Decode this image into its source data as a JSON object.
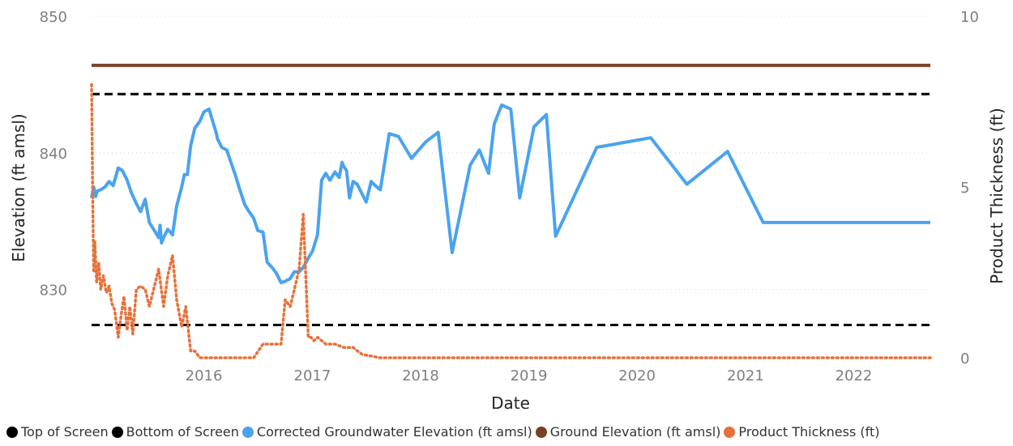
{
  "chart_data": {
    "type": "line",
    "title": "",
    "xlabel": "Date",
    "ylabel": "Elevation (ft amsl)",
    "y2label": "Product Thickness (ft)",
    "x_ticks": [
      "2016",
      "2017",
      "2018",
      "2019",
      "2020",
      "2021",
      "2022"
    ],
    "y_ticks": [
      830,
      840,
      850
    ],
    "y2_ticks": [
      0,
      5,
      10
    ],
    "ylim": [
      825,
      850
    ],
    "y2lim": [
      0,
      10
    ],
    "xlim": [
      "2015-01-01",
      "2022-09-30"
    ],
    "grid": "horizontal dotted",
    "legend_position": "bottom-left",
    "series": [
      {
        "name": "Top of Screen",
        "axis": "left",
        "color": "#000000",
        "style": "dashed",
        "x": [
          "2015-01-01",
          "2022-09-30"
        ],
        "values": [
          844.3,
          844.3
        ]
      },
      {
        "name": "Bottom of Screen",
        "axis": "left",
        "color": "#000000",
        "style": "dashed",
        "x": [
          "2015-01-01",
          "2022-09-30"
        ],
        "values": [
          827.4,
          827.4
        ]
      },
      {
        "name": "Corrected Groundwater Elevation (ft amsl)",
        "axis": "left",
        "color": "#4aa3f0",
        "style": "solid",
        "x": [
          "2015-01-01",
          "2015-01-08",
          "2015-01-15",
          "2015-01-20",
          "2015-02-01",
          "2015-02-15",
          "2015-03-01",
          "2015-03-15",
          "2015-04-01",
          "2015-04-15",
          "2015-05-01",
          "2015-05-15",
          "2015-06-01",
          "2015-06-15",
          "2015-07-01",
          "2015-07-15",
          "2015-08-01",
          "2015-08-15",
          "2015-08-20",
          "2015-08-25",
          "2015-09-01",
          "2015-09-15",
          "2015-10-01",
          "2015-10-15",
          "2015-11-01",
          "2015-11-10",
          "2015-11-20",
          "2015-12-01",
          "2015-12-15",
          "2016-01-01",
          "2016-01-15",
          "2016-02-01",
          "2016-02-15",
          "2016-02-25",
          "2016-03-01",
          "2016-03-15",
          "2016-04-01",
          "2016-04-15",
          "2016-05-01",
          "2016-05-15",
          "2016-06-01",
          "2016-06-15",
          "2016-07-01",
          "2016-07-15",
          "2016-08-01",
          "2016-08-15",
          "2016-09-01",
          "2016-09-15",
          "2016-10-01",
          "2016-10-15",
          "2016-11-01",
          "2016-11-15",
          "2016-12-01",
          "2016-12-15",
          "2017-01-01",
          "2017-01-15",
          "2017-02-01",
          "2017-02-15",
          "2017-03-01",
          "2017-03-15",
          "2017-04-01",
          "2017-04-15",
          "2017-04-25",
          "2017-05-01",
          "2017-05-10",
          "2017-05-20",
          "2017-06-01",
          "2017-06-15",
          "2017-07-01",
          "2017-07-15",
          "2017-08-01",
          "2017-08-15",
          "2017-09-01",
          "2017-10-01",
          "2017-11-01",
          "2017-12-15",
          "2018-02-01",
          "2018-03-15",
          "2018-05-01",
          "2018-07-01",
          "2018-08-01",
          "2018-09-01",
          "2018-09-20",
          "2018-10-15",
          "2018-11-15",
          "2018-12-15",
          "2019-02-01",
          "2019-03-15",
          "2019-04-15",
          "2019-09-01",
          "2020-03-01",
          "2020-07-01",
          "2020-11-15",
          "2021-03-15",
          "2021-07-15",
          "2021-12-01",
          "2022-03-01",
          "2022-09-30"
        ],
        "values": [
          836.7,
          837.5,
          836.8,
          837.2,
          837.3,
          837.5,
          837.9,
          837.6,
          838.9,
          838.7,
          838.0,
          837.1,
          836.3,
          835.7,
          836.6,
          834.9,
          834.3,
          833.8,
          834.7,
          833.4,
          833.8,
          834.4,
          834.0,
          836.1,
          837.5,
          838.4,
          838.4,
          840.5,
          841.8,
          842.3,
          843.0,
          843.2,
          842.2,
          841.5,
          841.0,
          840.4,
          840.2,
          839.3,
          838.3,
          837.3,
          836.2,
          835.7,
          835.2,
          834.3,
          834.2,
          832.0,
          831.6,
          831.2,
          830.5,
          830.6,
          830.8,
          831.3,
          831.3,
          831.6,
          832.3,
          832.8,
          834.0,
          838.0,
          838.5,
          838.0,
          838.6,
          838.2,
          839.3,
          839.0,
          838.7,
          836.7,
          837.9,
          837.7,
          837.0,
          836.4,
          837.9,
          837.6,
          837.3,
          841.4,
          841.2,
          839.6,
          840.8,
          841.5,
          832.7,
          839.1,
          840.2,
          838.5,
          842.1,
          843.5,
          843.2,
          836.7,
          841.9,
          842.8,
          833.9,
          840.4,
          841.1,
          837.7,
          840.1,
          834.9,
          834.9,
          834.9,
          834.9,
          834.9
        ]
      },
      {
        "name": "Ground Elevation (ft amsl)",
        "axis": "left",
        "color": "#7b3f23",
        "style": "solid",
        "x": [
          "2015-01-01",
          "2022-09-30"
        ],
        "values": [
          846.4,
          846.4
        ]
      },
      {
        "name": "Product Thickness (ft)",
        "axis": "right",
        "color": "#e8713a",
        "style": "dotted",
        "x": [
          "2015-01-01",
          "2015-01-05",
          "2015-01-08",
          "2015-01-12",
          "2015-01-18",
          "2015-01-25",
          "2015-02-01",
          "2015-02-10",
          "2015-02-20",
          "2015-03-01",
          "2015-03-10",
          "2015-03-20",
          "2015-04-01",
          "2015-04-10",
          "2015-04-20",
          "2015-05-01",
          "2015-05-10",
          "2015-05-20",
          "2015-06-01",
          "2015-06-15",
          "2015-07-01",
          "2015-07-15",
          "2015-08-01",
          "2015-08-15",
          "2015-09-01",
          "2015-09-15",
          "2015-10-01",
          "2015-10-15",
          "2015-11-01",
          "2015-11-15",
          "2015-12-01",
          "2015-12-15",
          "2016-01-01",
          "2016-02-01",
          "2016-04-01",
          "2016-06-01",
          "2016-07-01",
          "2016-08-01",
          "2016-09-01",
          "2016-10-01",
          "2016-10-15",
          "2016-11-01",
          "2016-11-15",
          "2016-12-01",
          "2016-12-15",
          "2017-01-01",
          "2017-01-10",
          "2017-01-20",
          "2017-02-01",
          "2017-03-01",
          "2017-04-01",
          "2017-05-01",
          "2017-06-01",
          "2017-07-01",
          "2017-08-01",
          "2017-09-01",
          "2018-01-01",
          "2019-01-01",
          "2020-01-01",
          "2021-01-01",
          "2022-01-01",
          "2022-09-30"
        ],
        "values": [
          8.0,
          4.5,
          2.5,
          3.4,
          2.2,
          2.8,
          2.0,
          2.4,
          1.9,
          2.1,
          1.6,
          1.4,
          0.6,
          1.2,
          1.8,
          0.8,
          1.5,
          0.7,
          2.0,
          2.1,
          2.0,
          1.5,
          2.1,
          2.6,
          1.5,
          2.4,
          3.0,
          1.7,
          0.9,
          1.5,
          0.2,
          0.2,
          0.0,
          0.0,
          0.0,
          0.0,
          0.0,
          0.4,
          0.4,
          0.4,
          1.7,
          1.5,
          2.0,
          2.6,
          4.2,
          0.6,
          0.6,
          0.5,
          0.6,
          0.4,
          0.4,
          0.3,
          0.3,
          0.1,
          0.05,
          0.0,
          0.0,
          0.0,
          0.0,
          0.0,
          0.0,
          0.0
        ]
      }
    ]
  }
}
